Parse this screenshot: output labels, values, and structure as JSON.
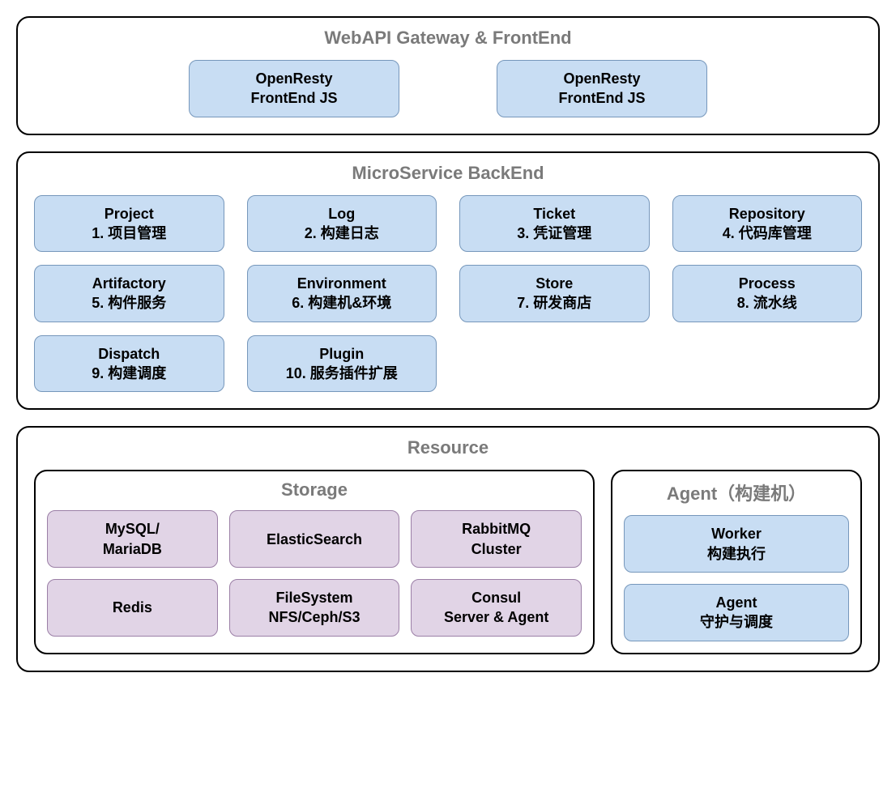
{
  "gateway": {
    "title": "WebAPI Gateway & FrontEnd",
    "boxes": [
      {
        "line1": "OpenResty",
        "line2": "FrontEnd JS"
      },
      {
        "line1": "OpenResty",
        "line2": "FrontEnd JS"
      }
    ]
  },
  "microservice": {
    "title": "MicroService BackEnd",
    "services": [
      {
        "name": "Project",
        "desc": "1. 项目管理"
      },
      {
        "name": "Log",
        "desc": "2. 构建日志"
      },
      {
        "name": "Ticket",
        "desc": "3. 凭证管理"
      },
      {
        "name": "Repository",
        "desc": "4. 代码库管理"
      },
      {
        "name": "Artifactory",
        "desc": "5. 构件服务"
      },
      {
        "name": "Environment",
        "desc": "6. 构建机&环境"
      },
      {
        "name": "Store",
        "desc": "7. 研发商店"
      },
      {
        "name": "Process",
        "desc": "8. 流水线"
      },
      {
        "name": "Dispatch",
        "desc": "9. 构建调度"
      },
      {
        "name": "Plugin",
        "desc": "10. 服务插件扩展"
      }
    ]
  },
  "resource": {
    "title": "Resource",
    "storage": {
      "title": "Storage",
      "items": [
        {
          "line1": "MySQL/",
          "line2": "MariaDB"
        },
        {
          "line1": "ElasticSearch",
          "line2": ""
        },
        {
          "line1": "RabbitMQ",
          "line2": "Cluster"
        },
        {
          "line1": "Redis",
          "line2": ""
        },
        {
          "line1": "FileSystem",
          "line2": "NFS/Ceph/S3"
        },
        {
          "line1": "Consul",
          "line2": "Server & Agent"
        }
      ]
    },
    "agent": {
      "title": "Agent（构建机）",
      "items": [
        {
          "line1": "Worker",
          "line2": "构建执行"
        },
        {
          "line1": "Agent",
          "line2": "守护与调度"
        }
      ]
    }
  },
  "colors": {
    "blue_bg": "#c8ddf3",
    "blue_border": "#7697bb",
    "purple_bg": "#e1d4e6",
    "purple_border": "#9b7fa6",
    "title_color": "#7a7a7a",
    "section_border": "#000000"
  }
}
